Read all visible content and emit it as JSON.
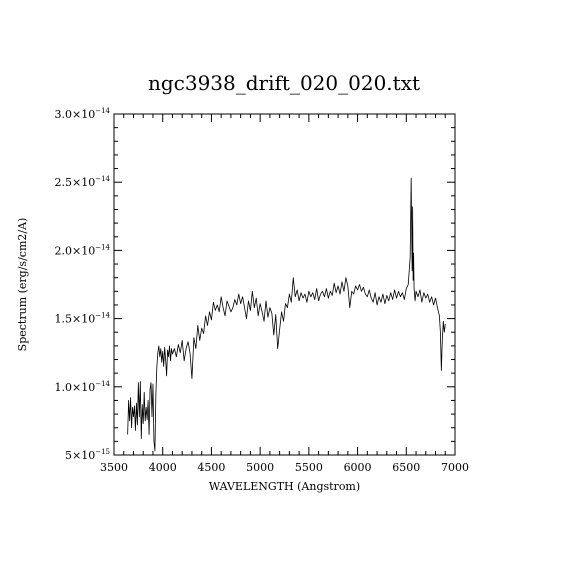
{
  "chart_data": {
    "type": "line",
    "title": "ngc3938_drift_020_020.txt",
    "xlabel": "WAVELENGTH (Angstrom)",
    "ylabel": "Spectrum (erg/s/cm2/A)",
    "xlim": [
      3500,
      7000
    ],
    "ylim": [
      5e-15,
      3e-14
    ],
    "grid": false,
    "x_ticks": [
      {
        "value": 3500,
        "label": "3500"
      },
      {
        "value": 4000,
        "label": "4000"
      },
      {
        "value": 4500,
        "label": "4500"
      },
      {
        "value": 5000,
        "label": "5000"
      },
      {
        "value": 5500,
        "label": "5500"
      },
      {
        "value": 6000,
        "label": "6000"
      },
      {
        "value": 6500,
        "label": "6500"
      },
      {
        "value": 7000,
        "label": "7000"
      }
    ],
    "y_ticks": [
      {
        "value": 5e-15,
        "mantissa": "5",
        "exponent": "−15"
      },
      {
        "value": 1e-14,
        "mantissa": "1.0",
        "exponent": "−14"
      },
      {
        "value": 1.5e-14,
        "mantissa": "1.5",
        "exponent": "−14"
      },
      {
        "value": 2e-14,
        "mantissa": "2.0",
        "exponent": "−14"
      },
      {
        "value": 2.5e-14,
        "mantissa": "2.5",
        "exponent": "−14"
      },
      {
        "value": 3e-14,
        "mantissa": "3.0",
        "exponent": "−14"
      }
    ],
    "series": [
      {
        "color": "#000000",
        "x": [
          3640,
          3650,
          3660,
          3670,
          3680,
          3690,
          3700,
          3710,
          3720,
          3730,
          3740,
          3750,
          3760,
          3770,
          3780,
          3790,
          3800,
          3810,
          3820,
          3830,
          3840,
          3850,
          3860,
          3870,
          3880,
          3890,
          3900,
          3910,
          3920,
          3930,
          3940,
          3950,
          3960,
          3970,
          3980,
          3990,
          4000,
          4010,
          4020,
          4030,
          4040,
          4050,
          4060,
          4070,
          4080,
          4090,
          4100,
          4120,
          4140,
          4160,
          4180,
          4200,
          4220,
          4240,
          4260,
          4280,
          4300,
          4320,
          4340,
          4360,
          4380,
          4400,
          4420,
          4440,
          4460,
          4480,
          4500,
          4520,
          4540,
          4560,
          4580,
          4600,
          4620,
          4640,
          4660,
          4680,
          4700,
          4720,
          4740,
          4760,
          4780,
          4800,
          4820,
          4840,
          4860,
          4880,
          4900,
          4920,
          4940,
          4960,
          4980,
          5000,
          5020,
          5040,
          5060,
          5080,
          5100,
          5120,
          5140,
          5160,
          5180,
          5200,
          5220,
          5240,
          5260,
          5280,
          5300,
          5320,
          5340,
          5360,
          5380,
          5400,
          5420,
          5440,
          5460,
          5480,
          5500,
          5520,
          5540,
          5560,
          5580,
          5600,
          5620,
          5640,
          5660,
          5680,
          5700,
          5720,
          5740,
          5760,
          5780,
          5800,
          5820,
          5840,
          5860,
          5880,
          5900,
          5920,
          5940,
          5960,
          5980,
          6000,
          6020,
          6040,
          6060,
          6080,
          6100,
          6120,
          6140,
          6160,
          6180,
          6200,
          6220,
          6240,
          6260,
          6280,
          6300,
          6320,
          6340,
          6360,
          6380,
          6400,
          6420,
          6440,
          6460,
          6480,
          6500,
          6520,
          6540,
          6550,
          6560,
          6565,
          6570,
          6575,
          6580,
          6585,
          6590,
          6600,
          6620,
          6640,
          6660,
          6680,
          6700,
          6720,
          6740,
          6760,
          6780,
          6800,
          6820,
          6840,
          6850,
          6860,
          6870,
          6880,
          6890,
          6900
        ],
        "y": [
          6.5e-15,
          9e-15,
          7.5e-15,
          9.2e-15,
          7e-15,
          8.5e-15,
          7.8e-15,
          8.6e-15,
          6.8e-15,
          8.8e-15,
          7.2e-15,
          1.03e-14,
          7.8e-15,
          1.04e-14,
          6.2e-15,
          8.7e-15,
          7.3e-15,
          9.6e-15,
          7.5e-15,
          8.5e-15,
          7.6e-15,
          9e-15,
          6.5e-15,
          9.8e-15,
          1.03e-14,
          7.8e-15,
          1.02e-14,
          6e-15,
          5.3e-15,
          9.5e-15,
          1.15e-14,
          1.25e-14,
          1.3e-14,
          1.22e-14,
          1.28e-14,
          1.18e-14,
          1.26e-14,
          1.15e-14,
          1.29e-14,
          1.2e-14,
          1.08e-14,
          1.27e-14,
          1.22e-14,
          1.3e-14,
          1.19e-14,
          1.28e-14,
          1.24e-14,
          1.28e-14,
          1.22e-14,
          1.31e-14,
          1.25e-14,
          1.34e-14,
          1.19e-14,
          1.28e-14,
          1.33e-14,
          1.25e-14,
          1.06e-14,
          1.36e-14,
          1.28e-14,
          1.45e-14,
          1.34e-14,
          1.43e-14,
          1.39e-14,
          1.52e-14,
          1.45e-14,
          1.55e-14,
          1.49e-14,
          1.62e-14,
          1.56e-14,
          1.6e-14,
          1.55e-14,
          1.66e-14,
          1.58e-14,
          1.52e-14,
          1.63e-14,
          1.59e-14,
          1.55e-14,
          1.58e-14,
          1.64e-14,
          1.6e-14,
          1.68e-14,
          1.61e-14,
          1.66e-14,
          1.58e-14,
          1.5e-14,
          1.63e-14,
          1.56e-14,
          1.7e-14,
          1.58e-14,
          1.65e-14,
          1.52e-14,
          1.61e-14,
          1.55e-14,
          1.48e-14,
          1.63e-14,
          1.51e-14,
          1.58e-14,
          1.54e-14,
          1.38e-14,
          1.53e-14,
          1.28e-14,
          1.42e-14,
          1.55e-14,
          1.48e-14,
          1.61e-14,
          1.58e-14,
          1.68e-14,
          1.62e-14,
          1.8e-14,
          1.66e-14,
          1.71e-14,
          1.63e-14,
          1.69e-14,
          1.65e-14,
          1.68e-14,
          1.62e-14,
          1.7e-14,
          1.66e-14,
          1.69e-14,
          1.64e-14,
          1.72e-14,
          1.63e-14,
          1.68e-14,
          1.7e-14,
          1.66e-14,
          1.72e-14,
          1.65e-14,
          1.7e-14,
          1.67e-14,
          1.76e-14,
          1.69e-14,
          1.74e-14,
          1.68e-14,
          1.77e-14,
          1.7e-14,
          1.8e-14,
          1.74e-14,
          1.58e-14,
          1.7e-14,
          1.68e-14,
          1.74e-14,
          1.71e-14,
          1.75e-14,
          1.7e-14,
          1.73e-14,
          1.68e-14,
          1.66e-14,
          1.71e-14,
          1.65e-14,
          1.62e-14,
          1.69e-14,
          1.6e-14,
          1.66e-14,
          1.62e-14,
          1.68e-14,
          1.61e-14,
          1.67e-14,
          1.63e-14,
          1.69e-14,
          1.64e-14,
          1.71e-14,
          1.65e-14,
          1.7e-14,
          1.66e-14,
          1.69e-14,
          1.64e-14,
          1.72e-14,
          1.75e-14,
          1.95e-14,
          2.53e-14,
          1.85e-14,
          2.32e-14,
          1.78e-14,
          1.98e-14,
          1.72e-14,
          1.68e-14,
          1.63e-14,
          1.7e-14,
          1.66e-14,
          1.71e-14,
          1.62e-14,
          1.69e-14,
          1.65e-14,
          1.68e-14,
          1.62e-14,
          1.66e-14,
          1.6e-14,
          1.65e-14,
          1.58e-14,
          1.52e-14,
          1.4e-14,
          1.12e-14,
          1.35e-14,
          1.48e-14,
          1.4e-14,
          1.46e-14
        ]
      }
    ]
  }
}
